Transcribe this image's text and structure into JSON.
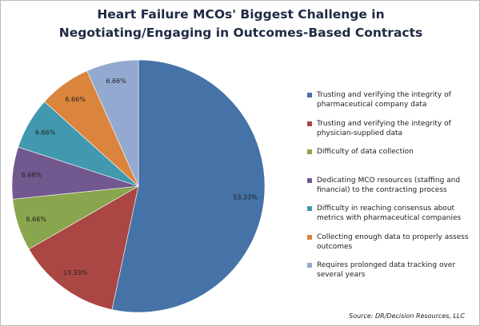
{
  "chart_data": {
    "type": "pie",
    "title": "Heart Failure MCOs' Biggest Challenge in Negotiating/Engaging in Outcomes-Based Contracts",
    "categories": [
      "Trusting and verifying the integrity of pharmaceutical company data",
      "Trusting and verifying the integrity of physician-supplied data",
      "Difficulty of data collection",
      "Dedicating MCO resources (staffing and financial) to the contracting process",
      "Difficulty in reaching consensus about metrics with pharmaceutical companies",
      "Collecting enough data to properly assess outcomes",
      "Requires prolonged data tracking over several years"
    ],
    "values": [
      53.33,
      13.33,
      6.66,
      6.66,
      6.66,
      6.66,
      6.66
    ],
    "value_labels": [
      "53.33%",
      "13.33%",
      "6.66%",
      "6.66%",
      "6.66%",
      "6.66%",
      "6.66%"
    ],
    "colors": [
      "#4572a7",
      "#aa4643",
      "#89a54e",
      "#71588f",
      "#4198af",
      "#db843d",
      "#93a9cf"
    ],
    "legend": "right",
    "source": "Source: DR/Decision Resources, LLC"
  }
}
